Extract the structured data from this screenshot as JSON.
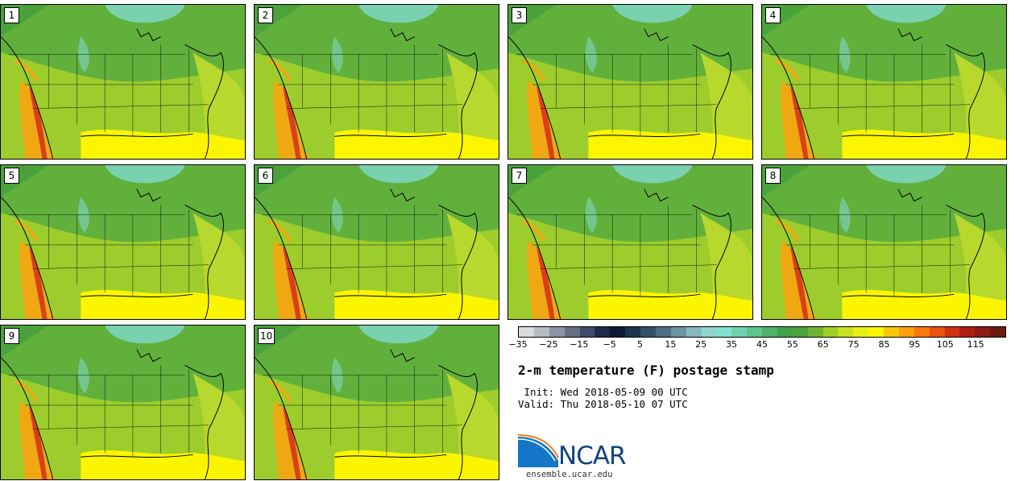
{
  "colors": {
    "ocean_south": "#fbf500",
    "ocean_atlantic": "#b8d82e",
    "ocean_pacific": "#4aa33a",
    "land_main": "#9ccd2c",
    "land_mid": "#62b03c",
    "north_cold": "#7fd7c3",
    "west_warm": "#f0a812",
    "west_hot": "#d8401a",
    "borders": "#111111"
  },
  "panels": [
    {
      "label": "1"
    },
    {
      "label": "2"
    },
    {
      "label": "3"
    },
    {
      "label": "4"
    },
    {
      "label": "5"
    },
    {
      "label": "6"
    },
    {
      "label": "7"
    },
    {
      "label": "8"
    },
    {
      "label": "9"
    },
    {
      "label": "10"
    }
  ],
  "colorbar": {
    "colors": [
      "#d9dcdf",
      "#b7bcc4",
      "#8c95a4",
      "#656f84",
      "#3e4a66",
      "#1d2a4c",
      "#0c1a38",
      "#1e3450",
      "#34506a",
      "#4d6f84",
      "#6a95a0",
      "#86b8bd",
      "#8fd5cf",
      "#84e0cf",
      "#6fd3b0",
      "#5bc68d",
      "#4db36a",
      "#40a446",
      "#4aa33a",
      "#6db52f",
      "#a1cf25",
      "#c8e21c",
      "#e8ef12",
      "#fbf500",
      "#fcc708",
      "#fca10a",
      "#f97a0a",
      "#ea520f",
      "#cf3210",
      "#b01e12",
      "#8c1b12",
      "#6b1a12"
    ],
    "min": -35,
    "max": 125,
    "tick_values": [
      -35,
      -25,
      -15,
      -5,
      5,
      15,
      25,
      35,
      45,
      55,
      65,
      75,
      85,
      95,
      105,
      115
    ],
    "tick_labels": [
      "−35",
      "−25",
      "−15",
      "−5",
      "5",
      "15",
      "25",
      "35",
      "45",
      "55",
      "65",
      "75",
      "85",
      "95",
      "105",
      "115"
    ]
  },
  "title": "2-m temperature (F) postage stamp",
  "init_line": " Init: Wed 2018-05-09 00 UTC",
  "valid_line": "Valid: Thu 2018-05-10 07 UTC",
  "logo": {
    "name": "NCAR",
    "url": "ensemble.ucar.edu"
  }
}
